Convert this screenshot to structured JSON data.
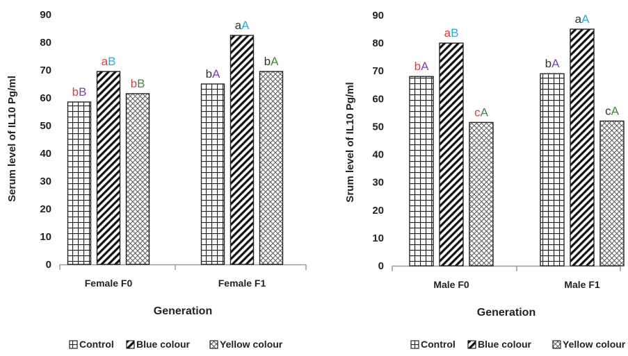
{
  "chart_data": [
    {
      "type": "bar",
      "categories": [
        "Female F0",
        "Female F1"
      ],
      "series": [
        {
          "name": "Control",
          "values": [
            58.5,
            65
          ],
          "letters": [
            [
              "b",
              "B"
            ],
            [
              "b",
              "A"
            ]
          ]
        },
        {
          "name": "Blue colour",
          "values": [
            69.5,
            82.5
          ],
          "letters": [
            [
              "a",
              "B"
            ],
            [
              "a",
              "A"
            ]
          ]
        },
        {
          "name": "Yellow colour",
          "values": [
            61.5,
            69.5
          ],
          "letters": [
            [
              "b",
              "B"
            ],
            [
              "b",
              "A"
            ]
          ]
        }
      ],
      "xlabel": "Generation",
      "ylabel": "Serum level of IL10 Pg/ml",
      "ylim": [
        0,
        90
      ],
      "yticks": [
        0,
        10,
        20,
        30,
        40,
        50,
        60,
        70,
        80,
        90
      ],
      "legend_position": "bottom",
      "grid": false
    },
    {
      "type": "bar",
      "categories": [
        "Male F0",
        "Male F1"
      ],
      "series": [
        {
          "name": "Control",
          "values": [
            68,
            69
          ],
          "letters": [
            [
              "b",
              "A"
            ],
            [
              "b",
              "A"
            ]
          ]
        },
        {
          "name": "Blue  colour",
          "values": [
            80,
            85
          ],
          "letters": [
            [
              "a",
              "B"
            ],
            [
              "a",
              "A"
            ]
          ]
        },
        {
          "name": "Yellow colour",
          "values": [
            51.5,
            52
          ],
          "letters": [
            [
              "c",
              "A"
            ],
            [
              "c",
              "A"
            ]
          ]
        }
      ],
      "xlabel": "Generation",
      "ylabel": "Srum level of IL10 Pg/ml",
      "ylim": [
        0,
        90
      ],
      "yticks": [
        0,
        10,
        20,
        30,
        40,
        50,
        60,
        70,
        80,
        90
      ],
      "legend_position": "bottom",
      "grid": false
    }
  ],
  "colors": {
    "lower_letter": [
      "#e8343a",
      "#2b2b2b",
      "#2e7d32"
    ],
    "upper_letter_B": "#29a8e0",
    "upper_letter_A": "#7b3fb5",
    "letter_palette": {
      "b_red": "#e8343a",
      "a_red": "#e8343a",
      "dark": "#333333",
      "green": "#3a8a3a",
      "blue": "#29a8e0",
      "purple": "#7b3fb5"
    }
  },
  "letter_colors": [
    [
      [
        [
          "#e8343a",
          "#7b3fb5"
        ],
        [
          "#333333",
          "#7b3fb5"
        ]
      ],
      [
        [
          "#e8343a",
          "#29a8e0"
        ],
        [
          "#333333",
          "#29a8e0"
        ]
      ],
      [
        [
          "#e8343a",
          "#3a8a3a"
        ],
        [
          "#333333",
          "#3a8a3a"
        ]
      ]
    ],
    [
      [
        [
          "#e8343a",
          "#7b3fb5"
        ],
        [
          "#333333",
          "#7b3fb5"
        ]
      ],
      [
        [
          "#e8343a",
          "#29a8e0"
        ],
        [
          "#333333",
          "#29a8e0"
        ]
      ],
      [
        [
          "#e8343a",
          "#3a8a3a"
        ],
        [
          "#333333",
          "#3a8a3a"
        ]
      ]
    ]
  ]
}
